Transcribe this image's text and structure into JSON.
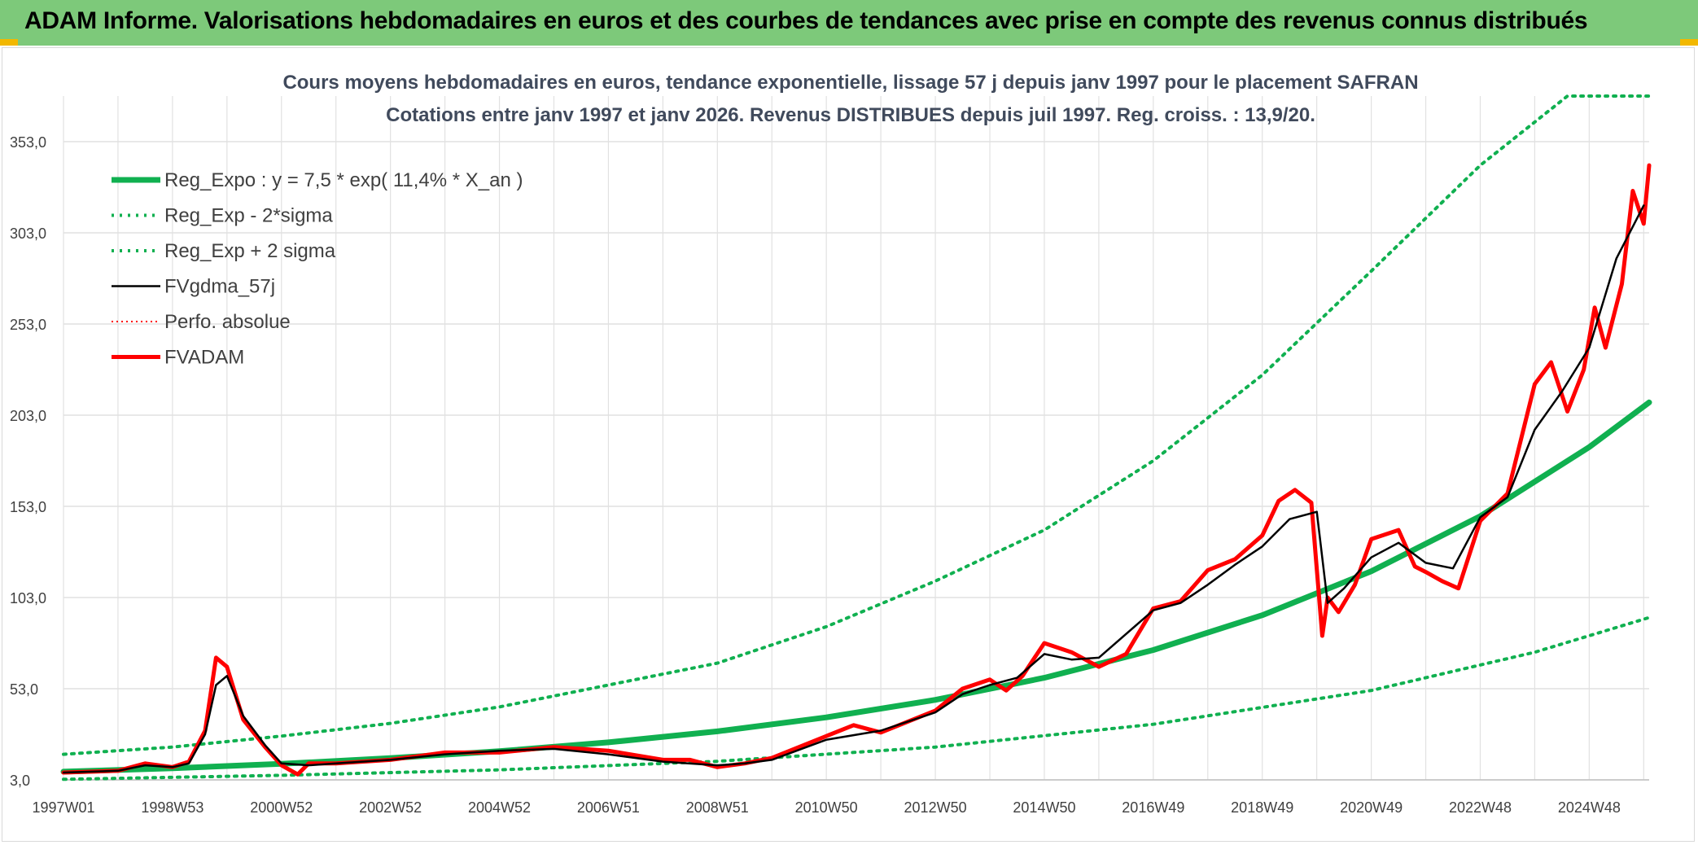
{
  "header": {
    "title": "ADAM Informe. Valorisations hebdomadaires en euros et des courbes de tendances avec prise en compte des revenus connus distribués"
  },
  "colors": {
    "banner": "#7dc97a",
    "trend_green": "#10b050",
    "price_red": "#ff0000",
    "avg_black": "#000000",
    "grid": "#e1e1e1"
  },
  "chart_data": {
    "type": "line",
    "title": "Cours moyens hebdomadaires en euros, tendance exponentielle, lissage 57 j depuis janv 1997 pour le placement SAFRAN",
    "subtitle": "Cotations entre janv 1997 et janv 2026. Revenus DISTRIBUES depuis juil 1997. Reg. croiss. : 13,9/20.",
    "xlabel": "",
    "ylabel": "",
    "x_range": [
      1997.0,
      2026.1
    ],
    "x_ticks": [
      "1997W01",
      "1998W53",
      "2000W52",
      "2002W52",
      "2004W52",
      "2006W51",
      "2008W51",
      "2010W50",
      "2012W50",
      "2014W50",
      "2016W49",
      "2018W49",
      "2020W49",
      "2022W48",
      "2024W48"
    ],
    "y_ticks": [
      "3,0",
      "53,0",
      "103,0",
      "153,0",
      "203,0",
      "253,0",
      "303,0",
      "353,0"
    ],
    "ylim": [
      3,
      378
    ],
    "grid": true,
    "legend_position": "top-left",
    "legend": [
      {
        "label": "Reg_Expo : y = 7,5 * exp( 11,4% *  X_an )",
        "style": "solid-thick-green"
      },
      {
        "label": "Reg_Exp - 2*sigma",
        "style": "dotted-green"
      },
      {
        "label": "Reg_Exp + 2 sigma",
        "style": "dotted-green"
      },
      {
        "label": "FVgdma_57j",
        "style": "solid-black"
      },
      {
        "label": "Perfo. absolue",
        "style": "dotted-red"
      },
      {
        "label": "FVADAM",
        "style": "solid-thick-red"
      }
    ],
    "series": [
      {
        "name": "Reg_Expo : y = 7,5 * exp( 11,4% *  X_an )",
        "x": [
          1997.0,
          1999.0,
          2001.0,
          2003.0,
          2005.0,
          2007.0,
          2009.0,
          2011.0,
          2013.0,
          2015.0,
          2017.0,
          2019.0,
          2021.0,
          2023.0,
          2025.0,
          2026.1
        ],
        "values": [
          7.5,
          9.4,
          11.8,
          14.9,
          18.7,
          23.6,
          29.6,
          37.3,
          46.9,
          59.0,
          74.2,
          93.3,
          117.4,
          147.6,
          185.5,
          210.0
        ]
      },
      {
        "name": "Reg_Exp - 2*sigma",
        "x": [
          1997.0,
          2001.0,
          2005.0,
          2009.0,
          2013.0,
          2017.0,
          2021.0,
          2024.0,
          2026.1
        ],
        "values": [
          3.3,
          5.5,
          8.5,
          13.2,
          21.0,
          33.5,
          52.0,
          73.0,
          92.0
        ]
      },
      {
        "name": "Reg_Exp + 2 sigma",
        "x": [
          1997.0,
          1999.0,
          2001.0,
          2003.0,
          2005.0,
          2007.0,
          2009.0,
          2011.0,
          2013.0,
          2015.0,
          2017.0,
          2019.0,
          2021.0,
          2023.0,
          2024.6,
          2026.1
        ],
        "values": [
          17.0,
          21.0,
          27.0,
          34.0,
          43.0,
          55.0,
          67.0,
          87.0,
          112.0,
          140.0,
          178.0,
          225.0,
          282.0,
          340.0,
          378.0,
          378.0
        ]
      },
      {
        "name": "FVgdma_57j",
        "x": [
          1997.0,
          1998.0,
          1998.5,
          1999.0,
          1999.3,
          1999.6,
          1999.8,
          2000.0,
          2000.3,
          2000.7,
          2001.0,
          2001.5,
          2002.0,
          2003.0,
          2004.0,
          2005.0,
          2006.0,
          2007.0,
          2008.0,
          2009.0,
          2009.5,
          2010.0,
          2011.0,
          2012.0,
          2013.0,
          2013.5,
          2014.0,
          2014.5,
          2015.0,
          2015.5,
          2016.0,
          2017.0,
          2017.5,
          2018.0,
          2018.5,
          2019.0,
          2019.5,
          2020.0,
          2020.2,
          2020.5,
          2021.0,
          2021.5,
          2022.0,
          2022.5,
          2023.0,
          2023.5,
          2024.0,
          2024.5,
          2025.0,
          2025.5,
          2026.0
        ],
        "values": [
          7,
          8,
          11,
          10,
          12,
          28,
          55,
          60,
          38,
          22,
          12,
          11,
          12,
          14,
          17,
          19,
          20,
          17,
          13,
          11,
          12,
          14,
          25,
          30,
          40,
          50,
          55,
          59,
          72,
          69,
          70,
          96,
          100,
          110,
          121,
          131,
          146,
          150,
          100,
          108,
          125,
          133,
          122,
          119,
          147,
          158,
          195,
          216,
          240,
          289,
          318
        ]
      },
      {
        "name": "FVADAM",
        "x": [
          1997.0,
          1998.0,
          1998.5,
          1999.0,
          1999.3,
          1999.6,
          1999.8,
          2000.0,
          2000.3,
          2000.7,
          2001.0,
          2001.3,
          2001.5,
          2002.0,
          2003.0,
          2004.0,
          2005.0,
          2006.0,
          2006.5,
          2007.0,
          2008.0,
          2008.5,
          2009.0,
          2009.5,
          2010.0,
          2011.0,
          2011.5,
          2012.0,
          2013.0,
          2013.5,
          2014.0,
          2014.3,
          2014.6,
          2015.0,
          2015.5,
          2016.0,
          2016.5,
          2017.0,
          2017.5,
          2018.0,
          2018.5,
          2019.0,
          2019.3,
          2019.6,
          2019.9,
          2020.1,
          2020.2,
          2020.4,
          2020.7,
          2021.0,
          2021.5,
          2021.8,
          2022.0,
          2022.3,
          2022.6,
          2023.0,
          2023.5,
          2024.0,
          2024.3,
          2024.6,
          2024.9,
          2025.1,
          2025.3,
          2025.6,
          2025.8,
          2026.0,
          2026.1
        ],
        "values": [
          7,
          8,
          12,
          10,
          13,
          30,
          70,
          65,
          36,
          21,
          11,
          6,
          12,
          12,
          14,
          18,
          18,
          21,
          20,
          19,
          14,
          14,
          10,
          12,
          15,
          27,
          33,
          29,
          41,
          53,
          58,
          52,
          60,
          78,
          73,
          65,
          72,
          97,
          101,
          118,
          124,
          137,
          156,
          162,
          155,
          82,
          103,
          95,
          110,
          135,
          140,
          120,
          117,
          112,
          108,
          145,
          160,
          220,
          232,
          205,
          228,
          262,
          240,
          275,
          326,
          308,
          340
        ]
      }
    ]
  }
}
